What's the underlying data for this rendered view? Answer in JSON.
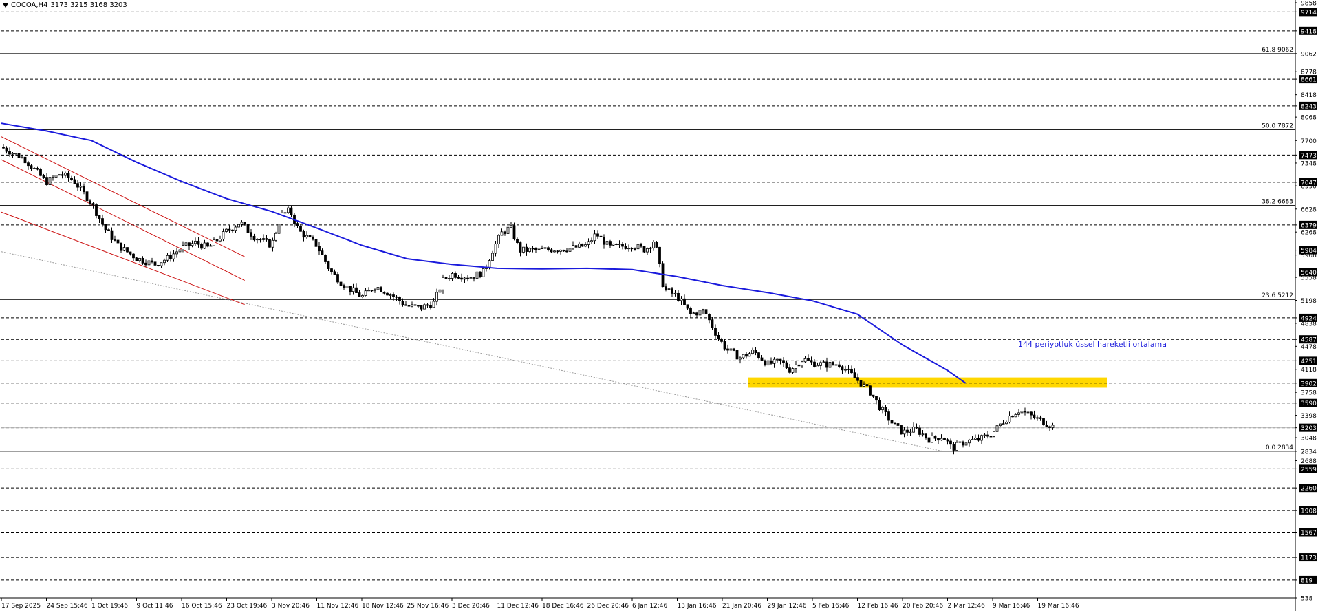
{
  "header": {
    "symbol": "COCOA,H4",
    "ohlc": "3173 3215 3168 3203"
  },
  "chart_data": {
    "type": "candlestick",
    "title": "COCOA,H4",
    "ohlc_current": {
      "open": 3173,
      "high": 3215,
      "low": 3168,
      "close": 3203
    },
    "ylim": [
      538,
      9858
    ],
    "y_ticks": [
      9858,
      9714,
      9418,
      9062,
      8778,
      8661,
      8418,
      8243,
      8068,
      7700,
      7473,
      7348,
      7047,
      6990,
      6628,
      6379,
      6268,
      5984,
      5908,
      5640,
      5558,
      5198,
      4924,
      4838,
      4587,
      4478,
      4251,
      4118,
      3902,
      3758,
      3590,
      3398,
      3203,
      3048,
      2834,
      2688,
      2559,
      2260,
      1908,
      1567,
      1173,
      819,
      538
    ],
    "boxed_levels": [
      9714,
      9418,
      8661,
      8243,
      7473,
      7047,
      6379,
      5984,
      5640,
      4924,
      4587,
      4251,
      3902,
      3590,
      3203,
      2559,
      2260,
      1908,
      1567,
      1173,
      819
    ],
    "fibonacci": [
      {
        "label": "61.8 9062",
        "value": 9062
      },
      {
        "label": "50.0 7872",
        "value": 7872
      },
      {
        "label": "38.2 6683",
        "value": 6683
      },
      {
        "label": "23.6 5212",
        "value": 5212
      },
      {
        "label": "0.0 2834",
        "value": 2834
      }
    ],
    "x_labels": [
      "17 Sep 2025",
      "24 Sep 15:46",
      "1 Oct 19:46",
      "9 Oct 11:46",
      "16 Oct 15:46",
      "23 Oct 19:46",
      "3 Nov 20:46",
      "11 Nov 12:46",
      "18 Nov 12:46",
      "25 Nov 16:46",
      "3 Dec 20:46",
      "11 Dec 12:46",
      "18 Dec 16:46",
      "26 Dec 20:46",
      "6 Jan 12:46",
      "13 Jan 16:46",
      "21 Jan 20:46",
      "29 Jan 12:46",
      "5 Feb 16:46",
      "12 Feb 16:46",
      "20 Feb 20:46",
      "2 Mar 12:46",
      "9 Mar 16:46",
      "19 Mar 16:46"
    ],
    "price_path": [
      [
        0,
        7600
      ],
      [
        0.5,
        7420
      ],
      [
        1,
        7050
      ],
      [
        1.3,
        7180
      ],
      [
        1.6,
        7080
      ],
      [
        2,
        6720
      ],
      [
        2.3,
        6320
      ],
      [
        2.6,
        6050
      ],
      [
        3,
        5860
      ],
      [
        3.4,
        5760
      ],
      [
        3.7,
        5860
      ],
      [
        4,
        6020
      ],
      [
        4.3,
        6100
      ],
      [
        4.6,
        6020
      ],
      [
        5,
        6280
      ],
      [
        5.3,
        6420
      ],
      [
        5.6,
        6200
      ],
      [
        6,
        6060
      ],
      [
        6.2,
        6520
      ],
      [
        6.4,
        6610
      ],
      [
        6.6,
        6290
      ],
      [
        7,
        6060
      ],
      [
        7.3,
        5660
      ],
      [
        7.6,
        5440
      ],
      [
        8,
        5250
      ],
      [
        8.3,
        5420
      ],
      [
        8.6,
        5310
      ],
      [
        9,
        5110
      ],
      [
        9.3,
        5080
      ],
      [
        9.6,
        5160
      ],
      [
        9.8,
        5510
      ],
      [
        10,
        5610
      ],
      [
        10.4,
        5560
      ],
      [
        10.7,
        5640
      ],
      [
        10.9,
        5980
      ],
      [
        11.1,
        6250
      ],
      [
        11.3,
        6340
      ],
      [
        11.5,
        5980
      ],
      [
        12,
        5990
      ],
      [
        12.6,
        6010
      ],
      [
        13,
        6060
      ],
      [
        13.2,
        6240
      ],
      [
        13.5,
        6030
      ],
      [
        14,
        6060
      ],
      [
        14.3,
        5990
      ],
      [
        14.5,
        6150
      ],
      [
        14.7,
        5380
      ],
      [
        15,
        5260
      ],
      [
        15.3,
        4980
      ],
      [
        15.6,
        5040
      ],
      [
        15.9,
        4620
      ],
      [
        16.1,
        4430
      ],
      [
        16.4,
        4300
      ],
      [
        16.7,
        4400
      ],
      [
        17,
        4200
      ],
      [
        17.3,
        4240
      ],
      [
        17.5,
        4110
      ],
      [
        17.8,
        4280
      ],
      [
        18,
        4210
      ],
      [
        18.3,
        4190
      ],
      [
        18.6,
        4200
      ],
      [
        19,
        3950
      ],
      [
        19.3,
        3750
      ],
      [
        19.5,
        3520
      ],
      [
        19.8,
        3250
      ],
      [
        20,
        3130
      ],
      [
        20.3,
        3180
      ],
      [
        20.6,
        3020
      ],
      [
        20.9,
        3070
      ],
      [
        21.1,
        2880
      ],
      [
        21.4,
        2990
      ],
      [
        21.7,
        3020
      ],
      [
        22,
        3120
      ],
      [
        22.2,
        3280
      ],
      [
        22.4,
        3400
      ],
      [
        22.6,
        3480
      ],
      [
        22.9,
        3370
      ],
      [
        23.2,
        3270
      ],
      [
        23.4,
        3203
      ]
    ],
    "ema_144": {
      "label": "144 periyotluk üssel hareketli ortalama",
      "color": "#1a1adc",
      "points": [
        [
          0,
          7970
        ],
        [
          1,
          7850
        ],
        [
          2,
          7700
        ],
        [
          3,
          7360
        ],
        [
          4,
          7060
        ],
        [
          5,
          6790
        ],
        [
          6,
          6590
        ],
        [
          7,
          6330
        ],
        [
          8,
          6060
        ],
        [
          9,
          5850
        ],
        [
          10,
          5760
        ],
        [
          11,
          5700
        ],
        [
          12,
          5690
        ],
        [
          13,
          5700
        ],
        [
          14,
          5680
        ],
        [
          15,
          5570
        ],
        [
          16,
          5430
        ],
        [
          17,
          5320
        ],
        [
          18,
          5190
        ],
        [
          19,
          4980
        ],
        [
          20,
          4500
        ],
        [
          21,
          4100
        ],
        [
          21.4,
          3902
        ]
      ]
    },
    "resistance_zone": {
      "from": 3830,
      "to": 3990,
      "color": "#ffd700"
    },
    "channel_lines": [
      {
        "from": [
          0,
          7760
        ],
        "to": [
          5.4,
          5880
        ]
      },
      {
        "from": [
          0,
          7400
        ],
        "to": [
          5.4,
          5510
        ]
      },
      {
        "from": [
          0,
          6580
        ],
        "to": [
          5.4,
          5130
        ]
      }
    ],
    "trend_line": {
      "from": [
        0,
        5960
      ],
      "to": [
        20.9,
        2834
      ]
    },
    "current_price": 3203,
    "grid": false,
    "colors": {
      "candle": "#000000",
      "fib": "#000000",
      "channel": "#cc1111",
      "ema": "#1a1adc",
      "annotation": "#1a1adc",
      "zone": "#ffd700"
    }
  }
}
